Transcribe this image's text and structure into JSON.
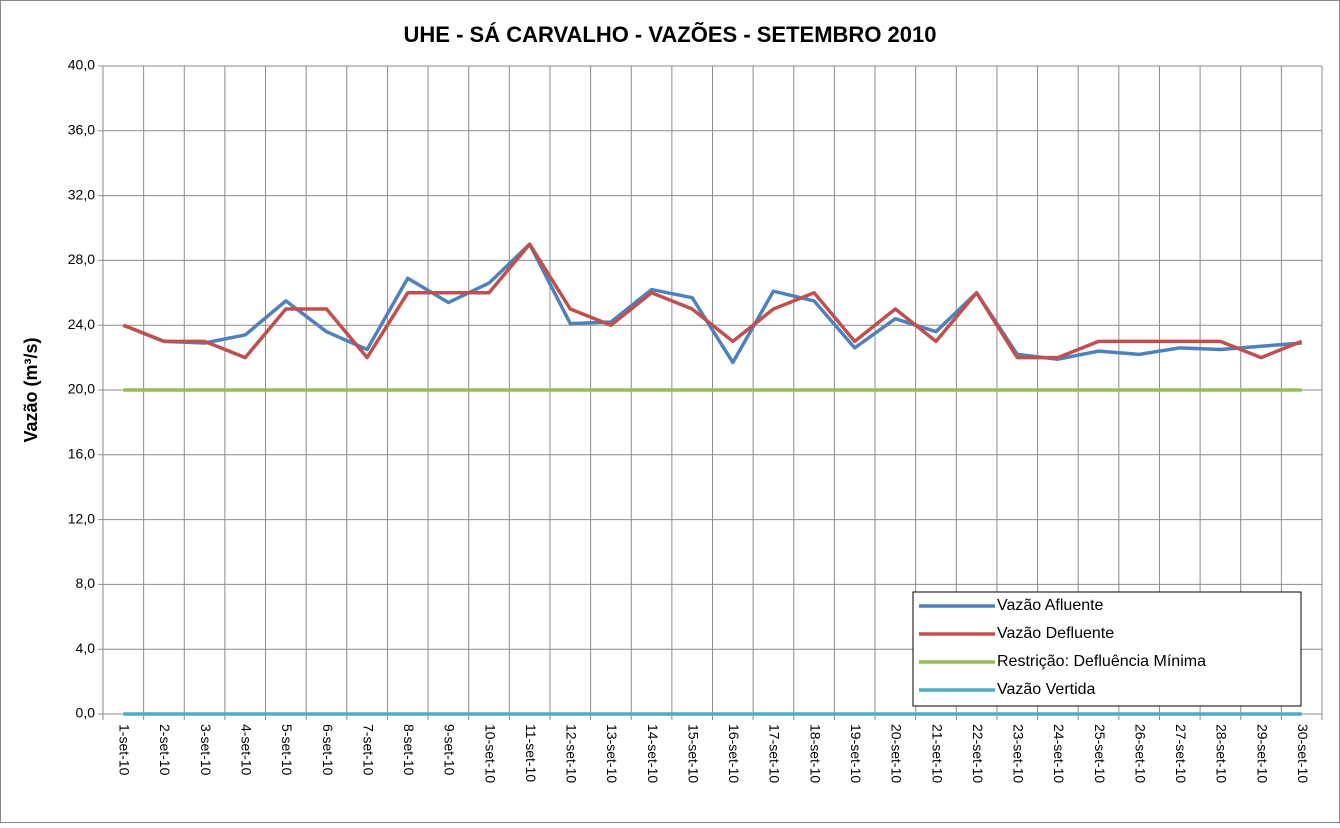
{
  "chart_data": {
    "type": "line",
    "title": "UHE - SÁ CARVALHO - VAZÕES - SETEMBRO 2010",
    "y_label": "Vazão (m³/s)",
    "categories": [
      "1-set-10",
      "2-set-10",
      "3-set-10",
      "4-set-10",
      "5-set-10",
      "6-set-10",
      "7-set-10",
      "8-set-10",
      "9-set-10",
      "10-set-10",
      "11-set-10",
      "12-set-10",
      "13-set-10",
      "14-set-10",
      "15-set-10",
      "16-set-10",
      "17-set-10",
      "18-set-10",
      "19-set-10",
      "20-set-10",
      "21-set-10",
      "22-set-10",
      "23-set-10",
      "24-set-10",
      "25-set-10",
      "26-set-10",
      "27-set-10",
      "28-set-10",
      "29-set-10",
      "30-set-10"
    ],
    "series": [
      {
        "name": "Vazão Afluente",
        "color": "#4f81bd",
        "values": [
          24.0,
          23.0,
          22.9,
          23.4,
          25.5,
          23.6,
          22.5,
          26.9,
          25.4,
          26.6,
          29.0,
          24.1,
          24.2,
          26.2,
          25.7,
          21.7,
          26.1,
          25.5,
          22.6,
          24.4,
          23.6,
          26.0,
          22.2,
          21.9,
          22.4,
          22.2,
          22.6,
          22.5,
          22.7,
          22.9
        ]
      },
      {
        "name": "Vazão Defluente",
        "color": "#c0504d",
        "values": [
          24,
          23,
          23,
          22,
          25,
          25,
          22,
          26,
          26,
          26,
          29,
          25,
          24,
          26,
          25,
          23,
          25,
          26,
          23,
          25,
          23,
          26,
          22,
          22,
          23,
          23,
          23,
          23,
          22,
          23
        ]
      },
      {
        "name": "Restrição: Defluência Mínima",
        "color": "#9bbb59",
        "values": [
          20,
          20,
          20,
          20,
          20,
          20,
          20,
          20,
          20,
          20,
          20,
          20,
          20,
          20,
          20,
          20,
          20,
          20,
          20,
          20,
          20,
          20,
          20,
          20,
          20,
          20,
          20,
          20,
          20,
          20
        ]
      },
      {
        "name": "Vazão Vertida",
        "color": "#4bacc6",
        "values": [
          0,
          0,
          0,
          0,
          0,
          0,
          0,
          0,
          0,
          0,
          0,
          0,
          0,
          0,
          0,
          0,
          0,
          0,
          0,
          0,
          0,
          0,
          0,
          0,
          0,
          0,
          0,
          0,
          0,
          0
        ]
      }
    ],
    "ylim": [
      0,
      40
    ],
    "yticks": [
      {
        "value": 0,
        "label": "0,0"
      },
      {
        "value": 4,
        "label": "4,0"
      },
      {
        "value": 8,
        "label": "8,0"
      },
      {
        "value": 12,
        "label": "12,0"
      },
      {
        "value": 16,
        "label": "16,0"
      },
      {
        "value": 20,
        "label": "20,0"
      },
      {
        "value": 24,
        "label": "24,0"
      },
      {
        "value": 28,
        "label": "28,0"
      },
      {
        "value": 32,
        "label": "32,0"
      },
      {
        "value": 36,
        "label": "36,0"
      },
      {
        "value": 40,
        "label": "40,0"
      }
    ],
    "grid": true,
    "legend": "lower right"
  }
}
